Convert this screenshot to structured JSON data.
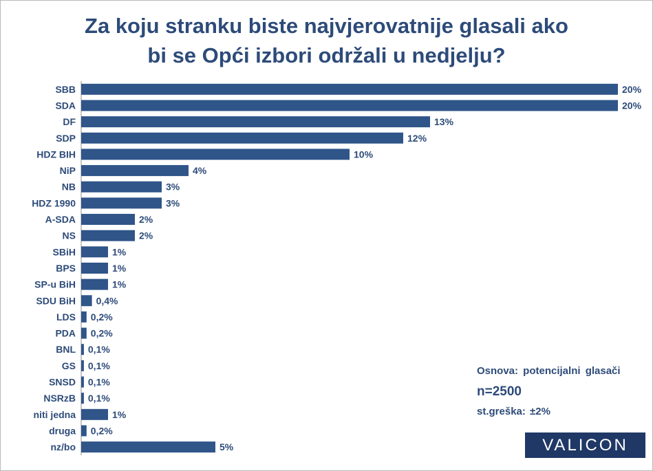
{
  "title": {
    "line1": "Za koju stranku biste najvjerovatnije glasali ako",
    "line2": "bi se Opći izbori održali u nedjelju?"
  },
  "info": {
    "basis": "Osnova: potencijalni glasači",
    "n": "n=2500",
    "error": "st.greška: ±2%"
  },
  "logo": "VALICON",
  "colors": {
    "bar": "#2f5589",
    "text": "#2d4b79",
    "logo_bg": "#1f3866"
  },
  "chart_data": {
    "type": "bar",
    "orientation": "horizontal",
    "categories": [
      "SBB",
      "SDA",
      "DF",
      "SDP",
      "HDZ BIH",
      "NiP",
      "NB",
      "HDZ 1990",
      "A-SDA",
      "NS",
      "SBiH",
      "BPS",
      "SP-u BiH",
      "SDU BiH",
      "LDS",
      "PDA",
      "BNL",
      "GS",
      "SNSD",
      "NSRzB",
      "niti jedna",
      "druga",
      "nz/bo"
    ],
    "values": [
      20,
      20,
      13,
      12,
      10,
      4,
      3,
      3,
      2,
      2,
      1,
      1,
      1,
      0.4,
      0.2,
      0.2,
      0.1,
      0.1,
      0.1,
      0.1,
      1,
      0.2,
      5
    ],
    "value_labels": [
      "20%",
      "20%",
      "13%",
      "12%",
      "10%",
      "4%",
      "3%",
      "3%",
      "2%",
      "2%",
      "1%",
      "1%",
      "1%",
      "0,4%",
      "0,2%",
      "0,2%",
      "0,1%",
      "0,1%",
      "0,1%",
      "0,1%",
      "1%",
      "0,2%",
      "5%"
    ],
    "xlim": [
      0,
      20
    ],
    "grid": false,
    "legend": false,
    "title": "",
    "xlabel": "",
    "ylabel": ""
  }
}
